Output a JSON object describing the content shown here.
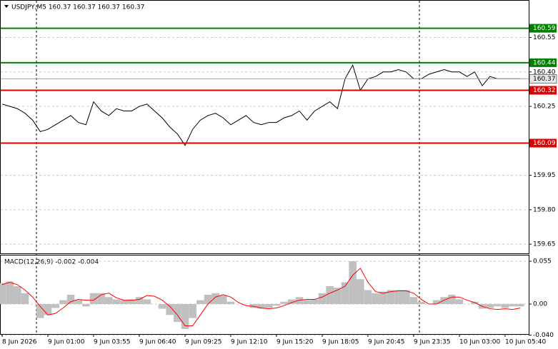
{
  "chart_data": [
    {
      "type": "line",
      "title": "USDJPY,M5  160.37 160.37 160.37 160.37",
      "color": "#000000",
      "values": [
        160.26,
        160.25,
        160.24,
        160.22,
        160.19,
        160.14,
        160.15,
        160.17,
        160.19,
        160.21,
        160.18,
        160.17,
        160.27,
        160.23,
        160.21,
        160.24,
        160.23,
        160.23,
        160.25,
        160.26,
        160.23,
        160.2,
        160.16,
        160.13,
        160.08,
        160.15,
        160.19,
        160.21,
        160.22,
        160.2,
        160.17,
        160.19,
        160.21,
        160.18,
        160.17,
        160.18,
        160.18,
        160.2,
        160.21,
        160.23,
        160.19,
        160.23,
        160.25,
        160.27,
        160.24,
        160.37,
        160.43,
        160.32,
        160.37,
        160.38,
        160.4,
        160.4,
        160.41,
        160.4,
        160.37,
        160.37,
        160.39,
        160.4,
        160.41,
        160.4,
        160.4,
        160.38,
        160.4,
        160.34,
        160.38,
        160.37,
        160.37,
        160.37,
        160.37
      ],
      "ylim": [
        159.61,
        160.71
      ],
      "yticks": [
        159.65,
        {
          "value": 159.8,
          "label": "159.80"
        },
        159.95,
        160.25,
        {
          "value": 160.4,
          "label": "160.40"
        },
        160.55
      ],
      "grid": true,
      "levels": [
        {
          "value": 160.59,
          "color": "#008000"
        },
        {
          "value": 160.44,
          "color": "#008000"
        },
        {
          "value": 160.32,
          "color": "#e00000"
        },
        {
          "value": 160.09,
          "color": "#e00000"
        }
      ],
      "last_price": 160.37
    },
    {
      "type": "macd",
      "title": "MACD(12,26,9) -0.002 -0.004",
      "categories": [
        "8 Jun 2026",
        null,
        null,
        null,
        null,
        null,
        "9 Jun 01:00",
        null,
        null,
        null,
        null,
        null,
        "9 Jun 03:55",
        null,
        null,
        null,
        null,
        null,
        "9 Jun 06:40",
        null,
        null,
        null,
        null,
        null,
        "9 Jun 09:25",
        null,
        null,
        null,
        null,
        null,
        "9 Jun 12:10",
        null,
        null,
        null,
        null,
        null,
        "9 Jun 15:20",
        null,
        null,
        null,
        null,
        null,
        "9 Jun 18:05",
        null,
        null,
        null,
        null,
        null,
        "9 Jun 20:45",
        null,
        null,
        null,
        null,
        null,
        "9 Jun 23:35",
        null,
        null,
        null,
        null,
        null,
        "10 Jun 03:00",
        null,
        null,
        null,
        null,
        null,
        "10 Jun 05:40",
        null,
        null
      ],
      "series": [
        {
          "type": "bar",
          "color": "#c0c0c0",
          "values": [
            0.027,
            0.029,
            0.023,
            0.014,
            0,
            -0.018,
            -0.014,
            -0.005,
            0.005,
            0.012,
            0.005,
            -0.003,
            0.014,
            0.014,
            0.009,
            0.006,
            0.005,
            0.006,
            0.009,
            0.006,
            0,
            -0.006,
            -0.014,
            -0.023,
            -0.032,
            -0.018,
            0.005,
            0.012,
            0.014,
            0.011,
            0.003,
            0,
            0,
            -0.005,
            -0.006,
            -0.005,
            -0.002,
            0.003,
            0.006,
            0.009,
            0.005,
            0.006,
            0.014,
            0.023,
            0.021,
            0.028,
            0.055,
            0.032,
            0.018,
            0.014,
            0.016,
            0.018,
            0.018,
            0.018,
            0.009,
            0.003,
            0,
            0.005,
            0.009,
            0.012,
            0.006,
            0,
            0.003,
            -0.006,
            -0.005,
            -0.003,
            -0.005,
            -0.003,
            -0.003
          ]
        },
        {
          "type": "line",
          "color": "#ff0000",
          "values": [
            0.025,
            0.028,
            0.025,
            0.018,
            0.009,
            -0.003,
            -0.014,
            -0.012,
            -0.005,
            0.003,
            0.006,
            0.005,
            0.005,
            0.012,
            0.014,
            0.008,
            0.005,
            0.005,
            0.006,
            0.011,
            0.01,
            0.005,
            -0.003,
            -0.014,
            -0.028,
            -0.028,
            -0.014,
            0,
            0.009,
            0.012,
            0.009,
            0.002,
            -0.002,
            -0.003,
            -0.005,
            -0.006,
            -0.005,
            -0.002,
            0.002,
            0.005,
            0.006,
            0.006,
            0.009,
            0.014,
            0.018,
            0.023,
            0.037,
            0.046,
            0.028,
            0.016,
            0.014,
            0.016,
            0.017,
            0.017,
            0.014,
            0.006,
            0,
            0,
            0.005,
            0.009,
            0.009,
            0.005,
            0.002,
            -0.003,
            -0.006,
            -0.007,
            -0.006,
            -0.007,
            -0.005
          ]
        }
      ],
      "ylim": [
        -0.0385,
        0.0624
      ],
      "yticks": [
        {
          "value": -0.04,
          "label": "-0.040"
        },
        {
          "value": 0,
          "label": "0.00"
        },
        {
          "value": 0.055,
          "label": "0.055"
        }
      ]
    }
  ]
}
